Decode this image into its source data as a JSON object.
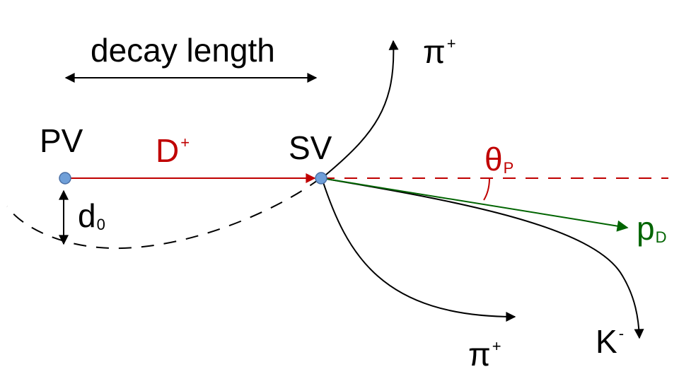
{
  "colors": {
    "background": "#ffffff",
    "black": "#000000",
    "red": "#c00000",
    "green": "#006400",
    "vertex_fill": "#6f9fd8",
    "vertex_stroke": "#4a6fa5"
  },
  "labels": {
    "decay_length": "decay length",
    "pv": "PV",
    "sv": "SV",
    "d_meson": {
      "base": "D",
      "sup": "+"
    },
    "theta_p": {
      "base": "θ",
      "sub": "P"
    },
    "d0": {
      "base": "d",
      "sub": "0"
    },
    "pD": {
      "base": "p",
      "sub": "D"
    },
    "pi_plus_top": {
      "base": "π",
      "sup": "+"
    },
    "pi_plus_bottom": {
      "base": "π",
      "sup": "+"
    },
    "k_minus": {
      "base": "K",
      "sup": "-"
    }
  }
}
